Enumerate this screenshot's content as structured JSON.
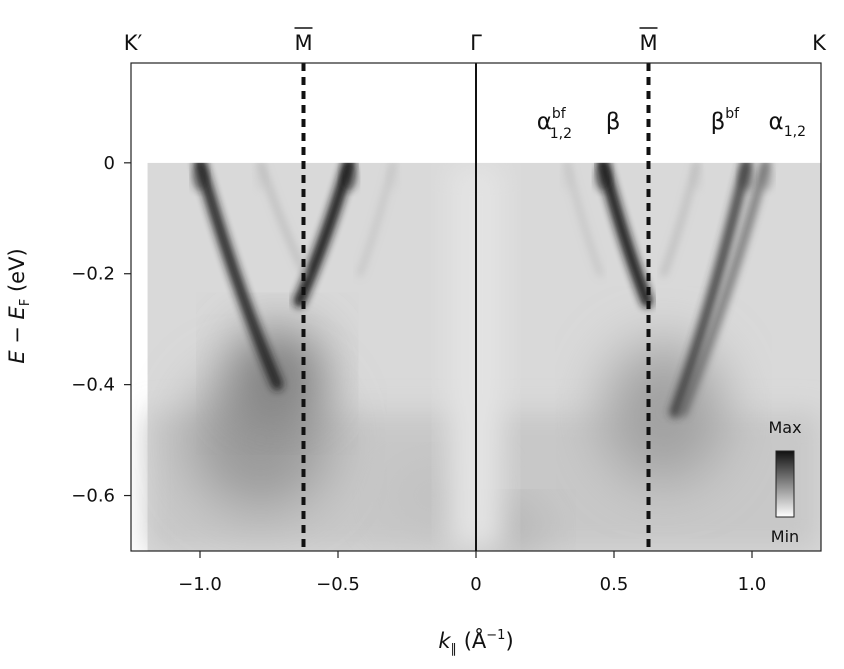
{
  "chart_data": {
    "type": "heatmap",
    "title": "",
    "xlabel": {
      "main": "k",
      "sub": "∥",
      "unit": " (Å",
      "sup": "−1",
      "close": ")"
    },
    "ylabel": {
      "main": "E",
      "minus": " − ",
      "main2": "E",
      "sub": "F",
      "unit": " (eV)"
    },
    "xlim": [
      -1.25,
      1.25
    ],
    "ylim": [
      -0.7,
      0.18
    ],
    "data_xrange": [
      -1.19,
      1.25
    ],
    "data_yrange": [
      -0.7,
      0.0
    ],
    "xticks": [
      -1.0,
      -0.5,
      0,
      0.5,
      1.0
    ],
    "xtick_labels": [
      "−1.0",
      "−0.5",
      "0",
      "0.5",
      "1.0"
    ],
    "yticks": [
      0,
      -0.2,
      -0.4,
      -0.6
    ],
    "ytick_labels": [
      "0",
      "−0.2",
      "−0.4",
      "−0.6"
    ],
    "high_symmetry_points": [
      {
        "label": "K′",
        "k": -1.25,
        "line": "none"
      },
      {
        "label": "M",
        "overline": true,
        "k": -0.625,
        "line": "dashed"
      },
      {
        "label": "Γ",
        "k": 0,
        "line": "solid"
      },
      {
        "label": "M",
        "overline": true,
        "k": 0.625,
        "line": "dashed"
      },
      {
        "label": "K",
        "k": 1.25,
        "line": "none"
      }
    ],
    "bands": [
      {
        "k_fermi": -1.0,
        "k_bottom": -0.72,
        "e_bottom": -0.4,
        "intensity": 0.95
      },
      {
        "k_fermi": -0.46,
        "k_bottom": -0.64,
        "e_bottom": -0.25,
        "intensity": 1.0
      },
      {
        "k_fermi": -0.78,
        "k_bottom": -0.62,
        "e_bottom": -0.2,
        "intensity": 0.3
      },
      {
        "k_fermi": -0.3,
        "k_bottom": -0.42,
        "e_bottom": -0.2,
        "intensity": 0.25
      },
      {
        "k_fermi": 0.46,
        "k_bottom": 0.62,
        "e_bottom": -0.25,
        "intensity": 1.0
      },
      {
        "k_fermi": 0.98,
        "k_bottom": 0.72,
        "e_bottom": -0.45,
        "intensity": 0.85
      },
      {
        "k_fermi": 1.05,
        "k_bottom": 0.75,
        "e_bottom": -0.45,
        "intensity": 0.65
      },
      {
        "k_fermi": 0.33,
        "k_bottom": 0.45,
        "e_bottom": -0.2,
        "intensity": 0.25
      },
      {
        "k_fermi": 0.8,
        "k_bottom": 0.68,
        "e_bottom": -0.2,
        "intensity": 0.3
      }
    ],
    "annotations": [
      {
        "id": "alpha-bf-left",
        "base": "α",
        "sup": "bf",
        "sub": "1,2",
        "k": 0.22,
        "e": 0.05
      },
      {
        "id": "beta-left",
        "base": "β",
        "k": 0.47,
        "e": 0.05
      },
      {
        "id": "beta-bf-right",
        "base": "β",
        "sup": "bf",
        "k": 0.85,
        "e": 0.05
      },
      {
        "id": "alpha-right",
        "base": "α",
        "sub": "1,2",
        "k": 1.06,
        "e": 0.05
      }
    ],
    "colorbar": {
      "max_label": "Max",
      "min_label": "Min",
      "colormap": [
        "#111111",
        "#ffffff"
      ]
    },
    "grid": false,
    "legend": "none"
  }
}
